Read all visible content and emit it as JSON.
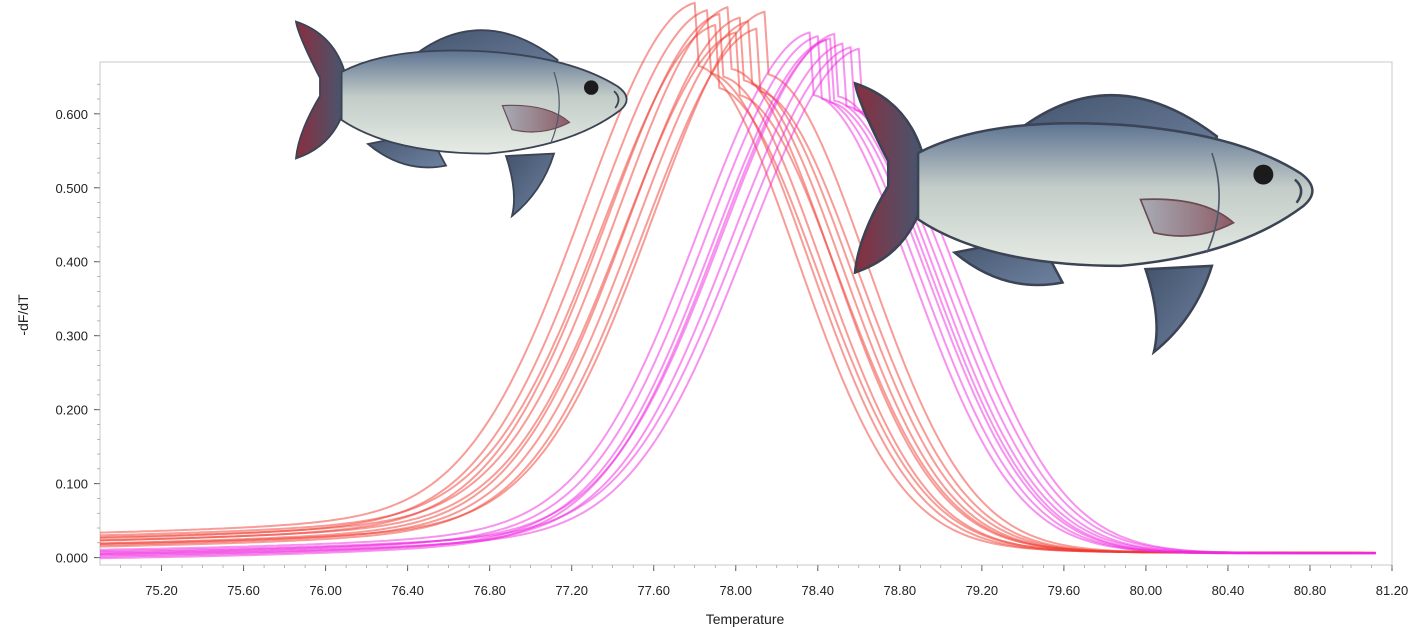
{
  "chart_data": {
    "type": "line",
    "title": "",
    "xlabel": "Temperature",
    "ylabel": "-dF/dT",
    "xlim": [
      74.9,
      81.2
    ],
    "ylim": [
      -0.01,
      0.67
    ],
    "grid": true,
    "x_ticks": [
      "75.20",
      "75.60",
      "76.00",
      "76.40",
      "76.80",
      "77.20",
      "77.60",
      "78.00",
      "78.40",
      "78.80",
      "79.20",
      "79.60",
      "80.00",
      "80.40",
      "80.80",
      "81.20"
    ],
    "y_ticks": [
      "0.000",
      "0.100",
      "0.200",
      "0.300",
      "0.400",
      "0.500",
      "0.600"
    ],
    "series": [
      {
        "group": "red",
        "color": "#f03a30",
        "peak_x": 77.8,
        "peak_y": 0.66,
        "base_y": 0.025
      },
      {
        "group": "red",
        "color": "#f03a30",
        "peak_x": 77.86,
        "peak_y": 0.65,
        "base_y": 0.018
      },
      {
        "group": "red",
        "color": "#f03a30",
        "peak_x": 77.92,
        "peak_y": 0.645,
        "base_y": 0.015
      },
      {
        "group": "red",
        "color": "#f03a30",
        "peak_x": 77.97,
        "peak_y": 0.655,
        "base_y": 0.02
      },
      {
        "group": "red",
        "color": "#f03a30",
        "peak_x": 78.02,
        "peak_y": 0.64,
        "base_y": 0.012
      },
      {
        "group": "red",
        "color": "#f03a30",
        "peak_x": 78.06,
        "peak_y": 0.635,
        "base_y": 0.01
      },
      {
        "group": "red",
        "color": "#f03a30",
        "peak_x": 77.9,
        "peak_y": 0.63,
        "base_y": 0.022
      },
      {
        "group": "red",
        "color": "#f03a30",
        "peak_x": 78.1,
        "peak_y": 0.625,
        "base_y": 0.008
      },
      {
        "group": "red",
        "color": "#f03a30",
        "peak_x": 78.14,
        "peak_y": 0.648,
        "base_y": 0.012
      },
      {
        "group": "red",
        "color": "#f03a30",
        "peak_x": 78.0,
        "peak_y": 0.62,
        "base_y": 0.016
      },
      {
        "group": "magenta",
        "color": "#f028e0",
        "peak_x": 78.36,
        "peak_y": 0.62,
        "base_y": 0.005
      },
      {
        "group": "magenta",
        "color": "#f028e0",
        "peak_x": 78.4,
        "peak_y": 0.615,
        "base_y": 0.0
      },
      {
        "group": "magenta",
        "color": "#f028e0",
        "peak_x": 78.44,
        "peak_y": 0.61,
        "base_y": -0.004
      },
      {
        "group": "magenta",
        "color": "#f028e0",
        "peak_x": 78.48,
        "peak_y": 0.618,
        "base_y": 0.002
      },
      {
        "group": "magenta",
        "color": "#f028e0",
        "peak_x": 78.52,
        "peak_y": 0.605,
        "base_y": -0.002
      },
      {
        "group": "magenta",
        "color": "#f028e0",
        "peak_x": 78.56,
        "peak_y": 0.6,
        "base_y": 0.004
      },
      {
        "group": "magenta",
        "color": "#f028e0",
        "peak_x": 78.46,
        "peak_y": 0.612,
        "base_y": -0.006
      },
      {
        "group": "magenta",
        "color": "#f028e0",
        "peak_x": 78.6,
        "peak_y": 0.598,
        "base_y": 0.0
      }
    ]
  },
  "illustrations": [
    {
      "name": "fish-illustration-small"
    },
    {
      "name": "fish-illustration-large"
    }
  ]
}
